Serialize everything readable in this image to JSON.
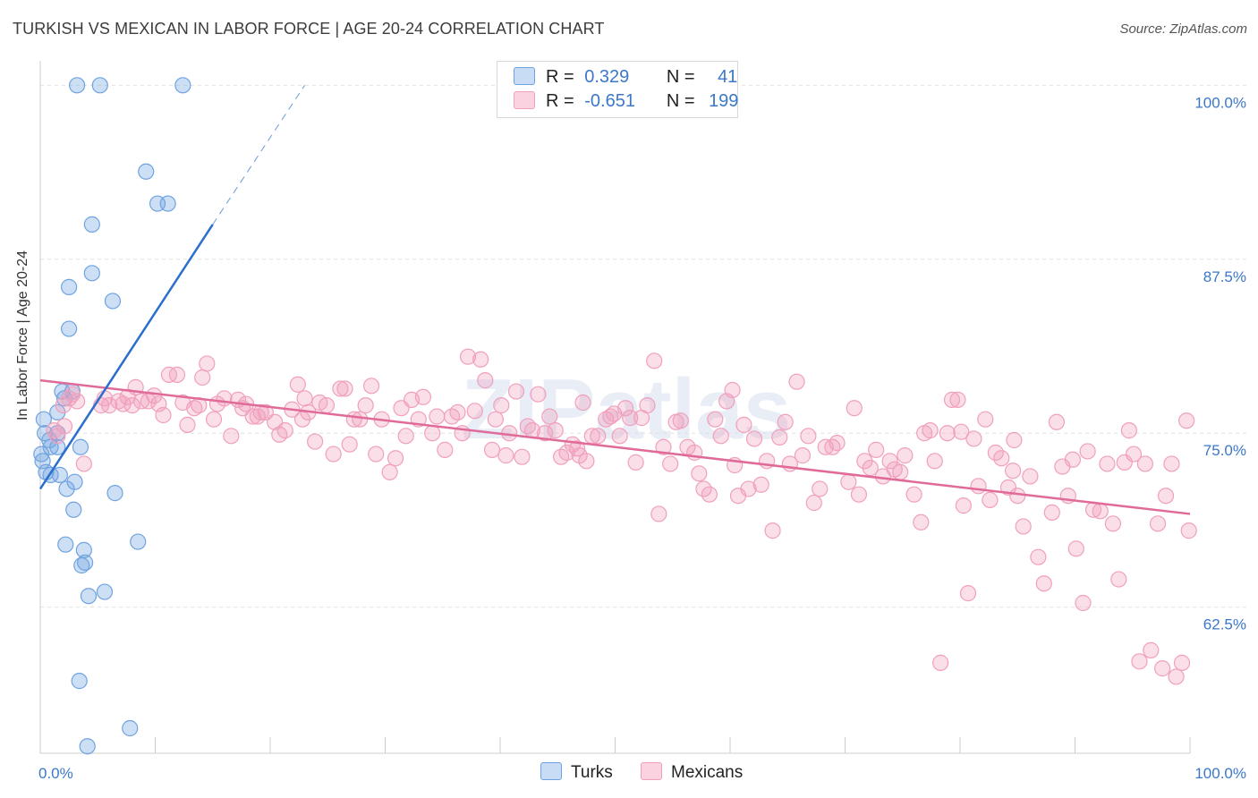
{
  "title": "TURKISH VS MEXICAN IN LABOR FORCE | AGE 20-24 CORRELATION CHART",
  "source": "Source: ZipAtlas.com",
  "watermark": "ZIPatlas",
  "legend": {
    "rows": [
      {
        "r_label": "R =",
        "r_value": "0.329",
        "n_label": "N =",
        "n_value": "41"
      },
      {
        "r_label": "R =",
        "r_value": "-0.651",
        "n_label": "N =",
        "n_value": "199"
      }
    ]
  },
  "bottom_legend": {
    "turks": "Turks",
    "mexicans": "Mexicans"
  },
  "chart_data": {
    "type": "scatter",
    "title": "TURKISH VS MEXICAN IN LABOR FORCE | AGE 20-24 CORRELATION CHART",
    "xlabel": "",
    "ylabel": "In Labor Force | Age 20-24",
    "xlim": [
      0,
      100
    ],
    "ylim": [
      52,
      101.5
    ],
    "x_tick_labels": [
      "0.0%",
      "100.0%"
    ],
    "y_ticks": [
      62.5,
      75.0,
      87.5,
      100.0
    ],
    "y_tick_labels": [
      "62.5%",
      "75.0%",
      "87.5%",
      "100.0%"
    ],
    "grid": true,
    "legend_position": "top-center",
    "colors": {
      "turks": "#6fa3e0",
      "turks_line": "#2b6fcc",
      "mexicans": "#f0a0bc",
      "mexicans_line": "#e06b98",
      "tick_label": "#3b78c9"
    },
    "series": [
      {
        "name": "Turks",
        "r": 0.329,
        "n": 41,
        "trend": {
          "x0": 0,
          "y0": 71.0,
          "x1": 15,
          "y1": 90.0,
          "dash_x1": 23,
          "dash_y1": 100.0
        },
        "points": [
          [
            3.2,
            100.0
          ],
          [
            5.2,
            100.0
          ],
          [
            12.4,
            100.0
          ],
          [
            9.2,
            93.8
          ],
          [
            10.2,
            91.5
          ],
          [
            11.1,
            91.5
          ],
          [
            4.5,
            90.0
          ],
          [
            4.5,
            86.5
          ],
          [
            2.5,
            85.5
          ],
          [
            6.3,
            84.5
          ],
          [
            2.5,
            82.5
          ],
          [
            1.9,
            78.0
          ],
          [
            2.8,
            78.0
          ],
          [
            2.1,
            77.5
          ],
          [
            1.5,
            76.5
          ],
          [
            0.3,
            76.0
          ],
          [
            0.4,
            75.0
          ],
          [
            0.8,
            74.5
          ],
          [
            1.5,
            75.0
          ],
          [
            0.9,
            74.0
          ],
          [
            1.5,
            74.0
          ],
          [
            3.5,
            74.0
          ],
          [
            0.2,
            73.0
          ],
          [
            0.5,
            72.2
          ],
          [
            0.9,
            72.0
          ],
          [
            1.7,
            72.0
          ],
          [
            3.0,
            71.5
          ],
          [
            2.3,
            71.0
          ],
          [
            6.5,
            70.7
          ],
          [
            2.9,
            69.5
          ],
          [
            8.5,
            67.2
          ],
          [
            2.2,
            67.0
          ],
          [
            3.8,
            66.6
          ],
          [
            3.9,
            65.7
          ],
          [
            3.6,
            65.5
          ],
          [
            5.6,
            63.6
          ],
          [
            4.2,
            63.3
          ],
          [
            3.4,
            57.2
          ],
          [
            7.8,
            53.8
          ],
          [
            4.1,
            52.5
          ],
          [
            0.1,
            73.5
          ]
        ]
      },
      {
        "name": "Mexicans",
        "r": -0.651,
        "n": 199,
        "trend": {
          "x0": 0,
          "y0": 78.8,
          "x1": 100,
          "y1": 69.2
        },
        "points": [
          [
            1.2,
            75.2
          ],
          [
            1.5,
            74.8
          ],
          [
            2.0,
            77.0
          ],
          [
            2.1,
            75.5
          ],
          [
            2.5,
            77.5
          ],
          [
            2.8,
            77.8
          ],
          [
            3.2,
            77.3
          ],
          [
            3.8,
            72.8
          ],
          [
            5.3,
            77.0
          ],
          [
            5.6,
            77.5
          ],
          [
            6.0,
            77.0
          ],
          [
            6.8,
            77.3
          ],
          [
            7.2,
            77.1
          ],
          [
            7.6,
            77.6
          ],
          [
            8.0,
            77.0
          ],
          [
            8.3,
            78.3
          ],
          [
            8.8,
            77.3
          ],
          [
            9.4,
            77.3
          ],
          [
            9.9,
            77.7
          ],
          [
            10.3,
            77.1
          ],
          [
            10.7,
            76.3
          ],
          [
            11.2,
            79.2
          ],
          [
            11.9,
            79.2
          ],
          [
            12.4,
            77.2
          ],
          [
            12.8,
            75.6
          ],
          [
            13.4,
            76.8
          ],
          [
            13.8,
            77.0
          ],
          [
            14.1,
            79.0
          ],
          [
            14.5,
            80.0
          ],
          [
            15.1,
            76.0
          ],
          [
            15.4,
            77.1
          ],
          [
            16.0,
            77.5
          ],
          [
            16.6,
            74.8
          ],
          [
            17.2,
            77.4
          ],
          [
            17.6,
            76.8
          ],
          [
            17.9,
            77.1
          ],
          [
            18.5,
            76.2
          ],
          [
            18.9,
            76.2
          ],
          [
            19.2,
            76.5
          ],
          [
            19.6,
            76.5
          ],
          [
            20.4,
            75.8
          ],
          [
            20.8,
            74.9
          ],
          [
            21.3,
            75.2
          ],
          [
            21.9,
            76.7
          ],
          [
            22.4,
            78.5
          ],
          [
            23.0,
            77.5
          ],
          [
            23.3,
            76.5
          ],
          [
            23.9,
            74.4
          ],
          [
            24.3,
            77.2
          ],
          [
            24.9,
            77.0
          ],
          [
            25.5,
            73.5
          ],
          [
            26.1,
            78.2
          ],
          [
            26.5,
            78.2
          ],
          [
            26.9,
            74.2
          ],
          [
            27.3,
            76.0
          ],
          [
            27.8,
            76.0
          ],
          [
            28.3,
            77.0
          ],
          [
            28.8,
            78.4
          ],
          [
            29.2,
            73.5
          ],
          [
            29.7,
            76.0
          ],
          [
            30.4,
            72.2
          ],
          [
            30.9,
            73.2
          ],
          [
            31.4,
            76.8
          ],
          [
            31.8,
            74.8
          ],
          [
            32.3,
            77.4
          ],
          [
            32.9,
            76.0
          ],
          [
            33.3,
            77.6
          ],
          [
            34.1,
            75.0
          ],
          [
            34.5,
            76.2
          ],
          [
            35.2,
            73.8
          ],
          [
            35.8,
            76.2
          ],
          [
            36.3,
            76.5
          ],
          [
            36.7,
            75.0
          ],
          [
            37.2,
            80.5
          ],
          [
            37.8,
            76.6
          ],
          [
            38.3,
            80.3
          ],
          [
            38.7,
            78.8
          ],
          [
            39.3,
            73.8
          ],
          [
            39.6,
            76.0
          ],
          [
            40.1,
            77.0
          ],
          [
            40.8,
            75.0
          ],
          [
            41.4,
            78.0
          ],
          [
            41.9,
            73.3
          ],
          [
            42.4,
            75.5
          ],
          [
            42.8,
            75.2
          ],
          [
            43.3,
            77.8
          ],
          [
            43.9,
            75.0
          ],
          [
            44.3,
            76.2
          ],
          [
            44.8,
            75.2
          ],
          [
            45.3,
            73.3
          ],
          [
            45.8,
            73.6
          ],
          [
            46.3,
            74.2
          ],
          [
            46.7,
            73.9
          ],
          [
            47.2,
            77.2
          ],
          [
            47.5,
            73.0
          ],
          [
            48.0,
            74.8
          ],
          [
            48.5,
            74.8
          ],
          [
            49.2,
            76.0
          ],
          [
            49.6,
            76.2
          ],
          [
            49.9,
            76.4
          ],
          [
            50.4,
            74.8
          ],
          [
            50.9,
            76.8
          ],
          [
            51.3,
            76.1
          ],
          [
            51.8,
            72.9
          ],
          [
            52.3,
            76.1
          ],
          [
            52.8,
            77.0
          ],
          [
            53.4,
            80.2
          ],
          [
            53.8,
            69.2
          ],
          [
            54.2,
            74.0
          ],
          [
            54.8,
            72.8
          ],
          [
            55.3,
            75.8
          ],
          [
            55.7,
            75.9
          ],
          [
            56.3,
            74.0
          ],
          [
            56.9,
            73.6
          ],
          [
            57.3,
            72.1
          ],
          [
            57.7,
            71.0
          ],
          [
            58.2,
            70.6
          ],
          [
            58.7,
            76.0
          ],
          [
            59.2,
            74.8
          ],
          [
            59.7,
            77.3
          ],
          [
            60.2,
            78.1
          ],
          [
            60.7,
            70.5
          ],
          [
            61.2,
            75.6
          ],
          [
            61.6,
            71.0
          ],
          [
            62.1,
            74.6
          ],
          [
            62.7,
            71.3
          ],
          [
            63.2,
            73.0
          ],
          [
            63.7,
            68.0
          ],
          [
            64.3,
            74.7
          ],
          [
            64.8,
            75.8
          ],
          [
            65.2,
            72.8
          ],
          [
            65.8,
            78.7
          ],
          [
            66.3,
            73.4
          ],
          [
            66.8,
            74.8
          ],
          [
            67.3,
            70.0
          ],
          [
            67.8,
            71.0
          ],
          [
            68.3,
            74.0
          ],
          [
            68.9,
            74.0
          ],
          [
            69.3,
            74.3
          ],
          [
            70.3,
            71.5
          ],
          [
            70.8,
            76.8
          ],
          [
            71.2,
            70.6
          ],
          [
            71.7,
            73.0
          ],
          [
            72.2,
            72.5
          ],
          [
            72.7,
            73.8
          ],
          [
            73.3,
            71.9
          ],
          [
            73.9,
            73.0
          ],
          [
            74.3,
            72.4
          ],
          [
            74.8,
            72.2
          ],
          [
            75.2,
            73.4
          ],
          [
            76.0,
            70.6
          ],
          [
            76.6,
            68.6
          ],
          [
            76.9,
            75.0
          ],
          [
            77.4,
            75.2
          ],
          [
            77.8,
            73.0
          ],
          [
            78.3,
            58.5
          ],
          [
            79.3,
            77.4
          ],
          [
            79.8,
            77.4
          ],
          [
            80.3,
            69.8
          ],
          [
            80.7,
            63.5
          ],
          [
            81.2,
            74.6
          ],
          [
            81.6,
            71.2
          ],
          [
            82.2,
            76.0
          ],
          [
            82.6,
            70.2
          ],
          [
            83.1,
            73.6
          ],
          [
            83.6,
            73.2
          ],
          [
            84.2,
            71.1
          ],
          [
            84.6,
            72.3
          ],
          [
            84.7,
            74.5
          ],
          [
            85.0,
            70.5
          ],
          [
            85.5,
            68.3
          ],
          [
            86.1,
            71.9
          ],
          [
            86.8,
            66.1
          ],
          [
            87.3,
            64.2
          ],
          [
            88.0,
            69.3
          ],
          [
            88.4,
            75.8
          ],
          [
            88.9,
            72.6
          ],
          [
            89.4,
            70.5
          ],
          [
            89.8,
            73.1
          ],
          [
            90.1,
            66.7
          ],
          [
            90.7,
            62.8
          ],
          [
            91.1,
            73.7
          ],
          [
            91.6,
            69.5
          ],
          [
            92.2,
            69.4
          ],
          [
            92.8,
            72.8
          ],
          [
            93.3,
            68.5
          ],
          [
            93.8,
            64.5
          ],
          [
            94.3,
            72.9
          ],
          [
            94.7,
            75.2
          ],
          [
            95.1,
            73.5
          ],
          [
            95.6,
            58.6
          ],
          [
            96.1,
            72.8
          ],
          [
            96.6,
            59.4
          ],
          [
            97.2,
            68.5
          ],
          [
            97.6,
            58.1
          ],
          [
            97.9,
            70.5
          ],
          [
            98.4,
            72.8
          ],
          [
            98.8,
            57.5
          ],
          [
            99.3,
            58.5
          ],
          [
            99.7,
            75.9
          ],
          [
            99.9,
            68.0
          ],
          [
            22.8,
            76.0
          ],
          [
            40.5,
            73.4
          ],
          [
            60.4,
            72.7
          ],
          [
            78.9,
            75.0
          ],
          [
            80.1,
            75.1
          ],
          [
            46.9,
            73.4
          ]
        ]
      }
    ]
  }
}
